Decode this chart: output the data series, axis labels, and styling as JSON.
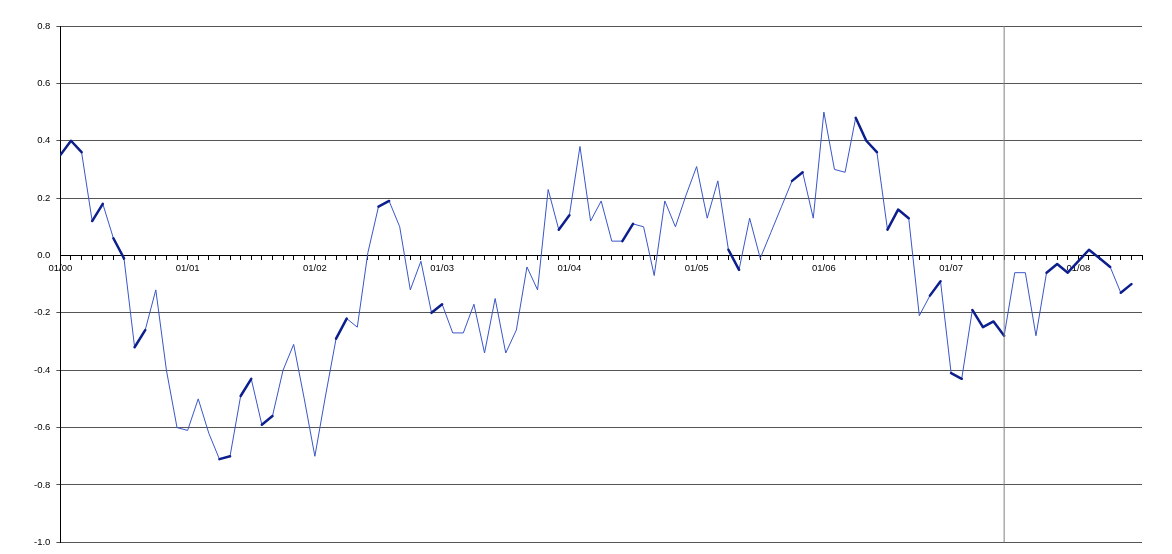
{
  "chart_data": {
    "type": "line",
    "marker": "none",
    "grid": "y",
    "legend": false,
    "x": [
      "2000-01",
      "2000-02",
      "2000-03",
      "2000-04",
      "2000-05",
      "2000-06",
      "2000-07",
      "2000-08",
      "2000-09",
      "2000-10",
      "2000-11",
      "2000-12",
      "2001-01",
      "2001-02",
      "2001-03",
      "2001-04",
      "2001-05",
      "2001-06",
      "2001-07",
      "2001-08",
      "2001-09",
      "2001-10",
      "2001-11",
      "2001-12",
      "2002-01",
      "2002-02",
      "2002-03",
      "2002-04",
      "2002-05",
      "2002-06",
      "2002-07",
      "2002-08",
      "2002-09",
      "2002-10",
      "2002-11",
      "2002-12",
      "2003-01",
      "2003-02",
      "2003-03",
      "2003-04",
      "2003-05",
      "2003-06",
      "2003-07",
      "2003-08",
      "2003-09",
      "2003-10",
      "2003-11",
      "2003-12",
      "2004-01",
      "2004-02",
      "2004-03",
      "2004-04",
      "2004-05",
      "2004-06",
      "2004-07",
      "2004-08",
      "2004-09",
      "2004-10",
      "2004-11",
      "2004-12",
      "2005-01",
      "2005-02",
      "2005-03",
      "2005-04",
      "2005-05",
      "2005-06",
      "2005-07",
      "2005-08",
      "2005-09",
      "2005-10",
      "2005-11",
      "2005-12",
      "2006-01",
      "2006-02",
      "2006-03",
      "2006-04",
      "2006-05",
      "2006-06",
      "2006-07",
      "2006-08",
      "2006-09",
      "2006-10",
      "2006-11",
      "2006-12",
      "2007-01",
      "2007-02",
      "2007-03",
      "2007-04",
      "2007-05",
      "2007-06",
      "2007-07",
      "2007-08",
      "2007-09",
      "2007-10",
      "2007-11",
      "2007-12",
      "2008-01",
      "2008-02",
      "2008-03",
      "2008-04",
      "2008-05",
      "2008-06"
    ],
    "series": [
      {
        "color": "#3a56c8",
        "values": [
          0.35,
          0.4,
          0.36,
          0.12,
          0.18,
          0.06,
          -0.01,
          -0.32,
          -0.26,
          -0.12,
          -0.4,
          -0.6,
          -0.61,
          -0.5,
          -0.62,
          -0.71,
          -0.7,
          -0.49,
          -0.43,
          -0.59,
          -0.56,
          -0.4,
          -0.31,
          -0.5,
          -0.7,
          -0.49,
          -0.29,
          -0.22,
          -0.25,
          0.01,
          0.17,
          0.19,
          0.1,
          -0.12,
          -0.02,
          -0.2,
          -0.17,
          -0.27,
          -0.27,
          -0.17,
          -0.34,
          -0.15,
          -0.34,
          -0.26,
          -0.04,
          -0.12,
          0.23,
          0.09,
          0.14,
          0.38,
          0.12,
          0.19,
          0.05,
          0.05,
          0.11,
          0.1,
          -0.07,
          0.19,
          0.1,
          0.21,
          0.31,
          0.13,
          0.26,
          0.02,
          -0.05,
          0.13,
          -0.01,
          0.08,
          0.17,
          0.26,
          0.29,
          0.13,
          0.5,
          0.3,
          0.29,
          0.48,
          0.4,
          0.36,
          0.09,
          0.16,
          0.13,
          -0.21,
          -0.14,
          -0.09,
          -0.41,
          -0.43,
          -0.19,
          -0.25,
          -0.23,
          -0.28,
          -0.06,
          -0.06,
          -0.28,
          -0.06,
          -0.03,
          -0.06,
          -0.02,
          0.02,
          -0.01,
          -0.04,
          -0.13,
          -0.1
        ]
      },
      {
        "color": "#0d1f8c",
        "values": [
          0.35,
          0.4,
          0.36,
          null,
          null,
          0.06,
          -0.01,
          null,
          null,
          null,
          null,
          null,
          null,
          null,
          null,
          -0.71,
          -0.7,
          null,
          null,
          -0.59,
          -0.56,
          null,
          null,
          null,
          null,
          null,
          null,
          null,
          null,
          null,
          0.17,
          0.19,
          null,
          null,
          null,
          null,
          null,
          null,
          null,
          null,
          null,
          null,
          null,
          null,
          null,
          null,
          null,
          0.09,
          0.14,
          null,
          null,
          null,
          null,
          null,
          null,
          null,
          null,
          null,
          null,
          null,
          null,
          null,
          null,
          0.02,
          -0.05,
          null,
          null,
          null,
          null,
          null,
          null,
          null,
          null,
          null,
          null,
          0.48,
          0.4,
          0.36,
          null,
          null,
          null,
          null,
          -0.14,
          -0.09,
          null,
          null,
          -0.19,
          -0.25,
          -0.23,
          -0.28,
          null,
          null,
          null,
          -0.06,
          -0.03,
          -0.06,
          -0.02,
          0.02,
          -0.01,
          -0.04,
          null,
          null
        ]
      },
      {
        "color": "#0d1f8c",
        "values": [
          null,
          null,
          null,
          0.12,
          0.18,
          null,
          null,
          -0.32,
          -0.26,
          null,
          null,
          null,
          null,
          null,
          null,
          null,
          null,
          -0.49,
          -0.43,
          null,
          null,
          null,
          null,
          null,
          null,
          null,
          -0.29,
          -0.22,
          null,
          null,
          null,
          null,
          null,
          null,
          null,
          -0.2,
          -0.17,
          null,
          null,
          null,
          null,
          null,
          null,
          null,
          null,
          null,
          null,
          null,
          null,
          null,
          null,
          null,
          null,
          0.05,
          0.11,
          null,
          null,
          null,
          null,
          null,
          null,
          null,
          null,
          null,
          null,
          null,
          null,
          null,
          null,
          0.26,
          0.29,
          null,
          null,
          null,
          null,
          null,
          null,
          null,
          0.09,
          0.16,
          0.13,
          null,
          null,
          null,
          -0.41,
          -0.43,
          null,
          null,
          null,
          null,
          null,
          null,
          null,
          null,
          null,
          null,
          null,
          null,
          null,
          null,
          -0.13,
          -0.1
        ]
      }
    ],
    "xlim": [
      "2000-01",
      "2008-07"
    ],
    "xticks": [
      {
        "value": "2000-01",
        "label": "01/00"
      },
      {
        "value": "2000-02",
        "label": null
      },
      {
        "value": "2000-03",
        "label": null
      },
      {
        "value": "2000-04",
        "label": null
      },
      {
        "value": "2000-05",
        "label": null
      },
      {
        "value": "2000-06",
        "label": null
      },
      {
        "value": "2000-07",
        "label": null
      },
      {
        "value": "2000-08",
        "label": null
      },
      {
        "value": "2000-09",
        "label": null
      },
      {
        "value": "2000-10",
        "label": null
      },
      {
        "value": "2000-11",
        "label": null
      },
      {
        "value": "2000-12",
        "label": null
      },
      {
        "value": "2001-01",
        "label": "01/01"
      },
      {
        "value": "2001-02",
        "label": null
      },
      {
        "value": "2001-03",
        "label": null
      },
      {
        "value": "2001-04",
        "label": null
      },
      {
        "value": "2001-05",
        "label": null
      },
      {
        "value": "2001-06",
        "label": null
      },
      {
        "value": "2001-07",
        "label": null
      },
      {
        "value": "2001-08",
        "label": null
      },
      {
        "value": "2001-09",
        "label": null
      },
      {
        "value": "2001-10",
        "label": null
      },
      {
        "value": "2001-11",
        "label": null
      },
      {
        "value": "2001-12",
        "label": null
      },
      {
        "value": "2002-01",
        "label": "01/02"
      },
      {
        "value": "2002-02",
        "label": null
      },
      {
        "value": "2002-03",
        "label": null
      },
      {
        "value": "2002-04",
        "label": null
      },
      {
        "value": "2002-05",
        "label": null
      },
      {
        "value": "2002-06",
        "label": null
      },
      {
        "value": "2002-07",
        "label": null
      },
      {
        "value": "2002-08",
        "label": null
      },
      {
        "value": "2002-09",
        "label": null
      },
      {
        "value": "2002-10",
        "label": null
      },
      {
        "value": "2002-11",
        "label": null
      },
      {
        "value": "2002-12",
        "label": null
      },
      {
        "value": "2003-01",
        "label": "01/03"
      },
      {
        "value": "2003-02",
        "label": null
      },
      {
        "value": "2003-03",
        "label": null
      },
      {
        "value": "2003-04",
        "label": null
      },
      {
        "value": "2003-05",
        "label": null
      },
      {
        "value": "2003-06",
        "label": null
      },
      {
        "value": "2003-07",
        "label": null
      },
      {
        "value": "2003-08",
        "label": null
      },
      {
        "value": "2003-09",
        "label": null
      },
      {
        "value": "2003-10",
        "label": null
      },
      {
        "value": "2003-11",
        "label": null
      },
      {
        "value": "2003-12",
        "label": null
      },
      {
        "value": "2004-01",
        "label": "01/04"
      },
      {
        "value": "2004-02",
        "label": null
      },
      {
        "value": "2004-03",
        "label": null
      },
      {
        "value": "2004-04",
        "label": null
      },
      {
        "value": "2004-05",
        "label": null
      },
      {
        "value": "2004-06",
        "label": null
      },
      {
        "value": "2004-07",
        "label": null
      },
      {
        "value": "2004-08",
        "label": null
      },
      {
        "value": "2004-09",
        "label": null
      },
      {
        "value": "2004-10",
        "label": null
      },
      {
        "value": "2004-11",
        "label": null
      },
      {
        "value": "2004-12",
        "label": null
      },
      {
        "value": "2005-01",
        "label": "01/05"
      },
      {
        "value": "2005-02",
        "label": null
      },
      {
        "value": "2005-03",
        "label": null
      },
      {
        "value": "2005-04",
        "label": null
      },
      {
        "value": "2005-05",
        "label": null
      },
      {
        "value": "2005-06",
        "label": null
      },
      {
        "value": "2005-07",
        "label": null
      },
      {
        "value": "2005-08",
        "label": null
      },
      {
        "value": "2005-09",
        "label": null
      },
      {
        "value": "2005-10",
        "label": null
      },
      {
        "value": "2005-11",
        "label": null
      },
      {
        "value": "2005-12",
        "label": null
      },
      {
        "value": "2006-01",
        "label": "01/06"
      },
      {
        "value": "2006-02",
        "label": null
      },
      {
        "value": "2006-03",
        "label": null
      },
      {
        "value": "2006-04",
        "label": null
      },
      {
        "value": "2006-05",
        "label": null
      },
      {
        "value": "2006-06",
        "label": null
      },
      {
        "value": "2006-07",
        "label": null
      },
      {
        "value": "2006-08",
        "label": null
      },
      {
        "value": "2006-09",
        "label": null
      },
      {
        "value": "2006-10",
        "label": null
      },
      {
        "value": "2006-11",
        "label": null
      },
      {
        "value": "2006-12",
        "label": null
      },
      {
        "value": "2007-01",
        "label": "01/07"
      },
      {
        "value": "2007-02",
        "label": null
      },
      {
        "value": "2007-03",
        "label": null
      },
      {
        "value": "2007-04",
        "label": null
      },
      {
        "value": "2007-05",
        "label": null
      },
      {
        "value": "2007-06",
        "label": null
      },
      {
        "value": "2007-07",
        "label": null
      },
      {
        "value": "2007-08",
        "label": null
      },
      {
        "value": "2007-09",
        "label": null
      },
      {
        "value": "2007-10",
        "label": null
      },
      {
        "value": "2007-11",
        "label": null
      },
      {
        "value": "2007-12",
        "label": null
      },
      {
        "value": "2008-01",
        "label": "01/08"
      },
      {
        "value": "2008-02",
        "label": null
      },
      {
        "value": "2008-03",
        "label": null
      },
      {
        "value": "2008-04",
        "label": null
      },
      {
        "value": "2008-05",
        "label": null
      },
      {
        "value": "2008-06",
        "label": null
      },
      {
        "value": "2008-07",
        "label": null
      }
    ],
    "ylim": [
      -1.0,
      0.8
    ],
    "yticks": [
      0.8,
      0.6,
      0.4,
      0.2,
      {
        "value": 0,
        "label": "0.0"
      },
      -0.2,
      -0.4,
      -0.6,
      -0.8,
      {
        "value": -1.0,
        "label": "-1.0"
      }
    ],
    "ref_lines": [
      {
        "axis": "x",
        "value": "2007-06",
        "color": "#808080"
      }
    ]
  }
}
